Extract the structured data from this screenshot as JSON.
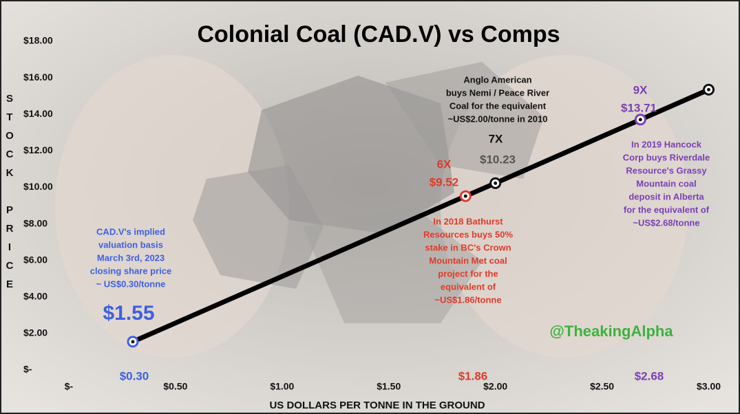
{
  "chart_data": {
    "type": "line",
    "title": "Colonial Coal (CAD.V) vs Comps",
    "ylabel": "STOCK PRICE",
    "xlabel": "US DOLLARS PER TONNE IN THE GROUND",
    "x": [
      0.3,
      1.86,
      2.0,
      2.68,
      3.0
    ],
    "values": [
      1.55,
      9.52,
      10.23,
      13.71,
      15.35
    ],
    "value_labels": [
      "$1.55",
      "$9.52",
      "$10.23",
      "$13.71",
      null
    ],
    "x_value_labels": [
      "$0.30",
      "$1.86",
      null,
      "$2.68",
      null
    ],
    "multiplier_labels": [
      null,
      "6X",
      "7X",
      "9X",
      null
    ],
    "color": "#000000",
    "marker_colors": [
      "#3f5fe0",
      "#e03a2a",
      "#111111",
      "#7a3fb5",
      "#111111"
    ],
    "xlim": [
      0,
      3.05
    ],
    "ylim": [
      0,
      18
    ],
    "xticks": [
      {
        "value": 0,
        "label": "$-"
      },
      {
        "value": 0.5,
        "label": "$0.50"
      },
      {
        "value": 1,
        "label": "$1.00"
      },
      {
        "value": 1.5,
        "label": "$1.50"
      },
      {
        "value": 2,
        "label": "$2.00"
      },
      {
        "value": 2.5,
        "label": "$2.50"
      },
      {
        "value": 3,
        "label": "$3.00"
      }
    ],
    "yticks": [
      {
        "value": 0,
        "label": "$-"
      },
      {
        "value": 2,
        "label": "$2.00"
      },
      {
        "value": 4,
        "label": "$4.00"
      },
      {
        "value": 6,
        "label": "$6.00"
      },
      {
        "value": 8,
        "label": "$8.00"
      },
      {
        "value": 10,
        "label": "$10.00"
      },
      {
        "value": 12,
        "label": "$12.00"
      },
      {
        "value": 14,
        "label": "$14.00"
      },
      {
        "value": 16,
        "label": "$16.00"
      },
      {
        "value": 18,
        "label": "$18.00"
      }
    ],
    "annotations": [
      {
        "lines": [
          "CAD.V's implied",
          "valuation basis",
          "March 3rd, 2023",
          "closing share price",
          "~ US$0.30/tonne"
        ],
        "color": "#3f5fe0"
      },
      {
        "lines": [
          "Anglo American",
          "buys Nemi / Peace River",
          "Coal for the equivalent",
          "~US$2.00/tonne in 2010"
        ],
        "color": "#111111"
      },
      {
        "lines": [
          "In 2018 Bathurst",
          "Resources buys 50%",
          "stake in BC's Crown",
          "Mountain Met coal",
          "project for the",
          "equivalent of",
          "~US$1.86/tonne"
        ],
        "color": "#e03a2a"
      },
      {
        "lines": [
          "In 2019 Hancock",
          "Corp buys Riverdale",
          "Resource's Grassy",
          "Mountain coal",
          "deposit in Alberta",
          "for the equivalent of",
          "~US$2.68/tonne"
        ],
        "color": "#7a3fb5"
      },
      {
        "lines": [
          "@TheakingAlpha"
        ],
        "color": "#3db23d"
      }
    ]
  }
}
